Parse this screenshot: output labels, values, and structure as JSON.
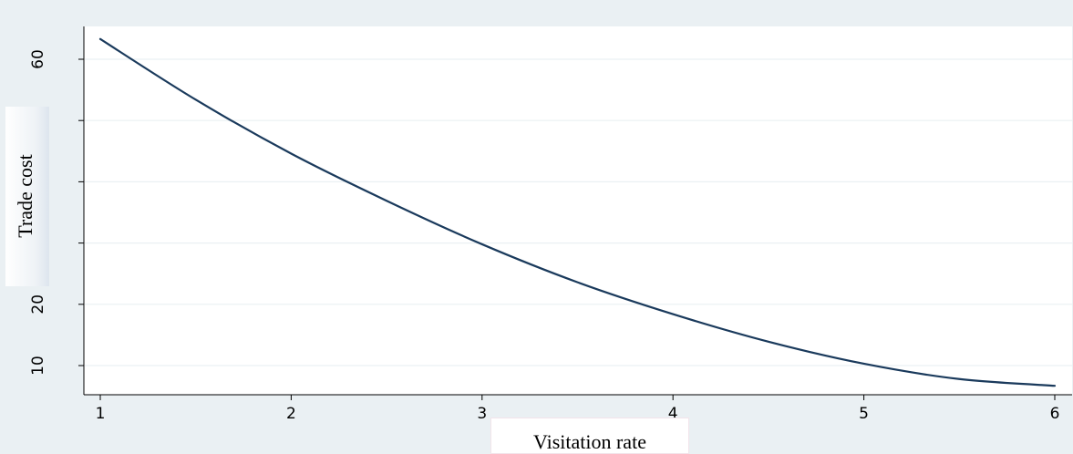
{
  "chart_data": {
    "type": "line",
    "xlabel": "Visitation rate",
    "ylabel": "Trade cost",
    "x_ticks": [
      "1",
      "2",
      "3",
      "4",
      "5",
      "6"
    ],
    "y_ticks": [
      "10",
      "20",
      "60"
    ],
    "y_gridlines": [
      10,
      20,
      30,
      40,
      50,
      60
    ],
    "xlim": [
      1,
      6
    ],
    "ylim": [
      5,
      65
    ],
    "grid": true,
    "series": [
      {
        "x": [
          1.0,
          1.5,
          2.0,
          2.5,
          3.0,
          3.5,
          4.0,
          4.5,
          5.0,
          5.5,
          6.0
        ],
        "y": [
          63.3,
          53.4,
          44.6,
          36.9,
          29.8,
          23.6,
          18.4,
          13.9,
          10.3,
          7.8,
          6.7
        ]
      }
    ],
    "colors": {
      "background": "#eaf0f3",
      "plot_area": "#ffffff",
      "line": "#1a3a5c",
      "grid": "#eaf0f3"
    }
  }
}
